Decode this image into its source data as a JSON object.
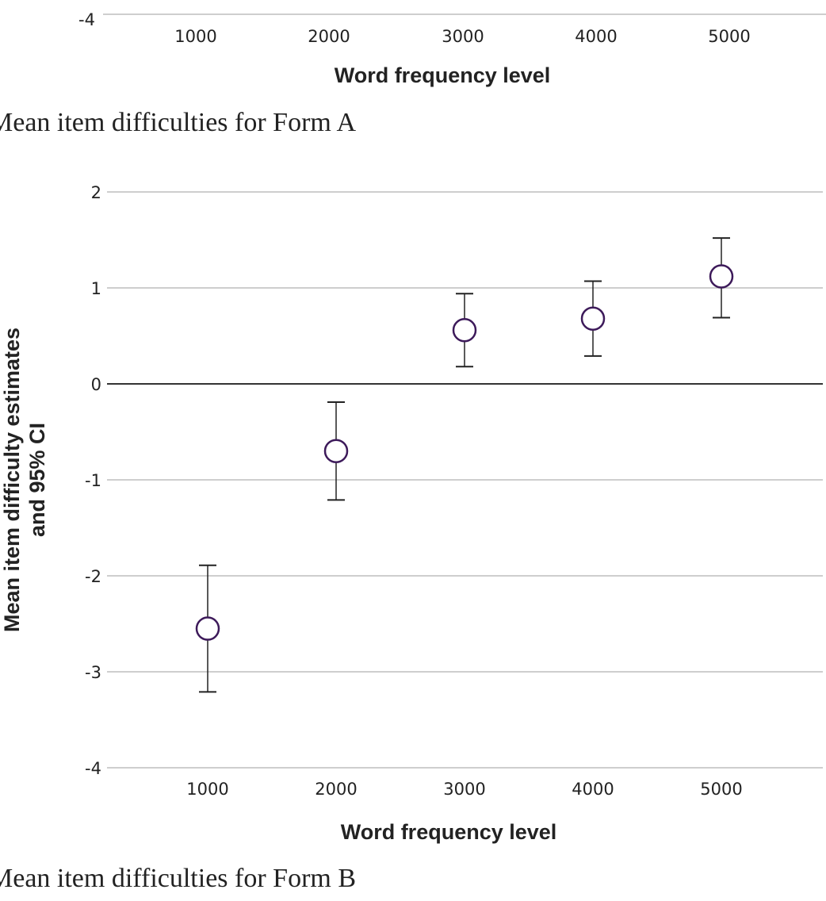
{
  "chart_data": [
    {
      "type": "errorbar",
      "partial": "bottom edge only visible",
      "xlabel": "Word frequency level",
      "categories": [
        "1000",
        "2000",
        "3000",
        "4000",
        "5000"
      ],
      "y_ticks_visible": [
        "-4"
      ],
      "caption": "Mean item difficulties for Form A"
    },
    {
      "type": "errorbar",
      "xlabel": "Word frequency level",
      "ylabel_lines": [
        "Mean item difficulty estimates",
        "and 95% CI"
      ],
      "categories": [
        "1000",
        "2000",
        "3000",
        "4000",
        "5000"
      ],
      "y_ticks": [
        "2",
        "1",
        "0",
        "-1",
        "-2",
        "-3",
        "-4"
      ],
      "ylim": [
        -4,
        2
      ],
      "grid": true,
      "marker": "open circle",
      "marker_color": "#3d1a5a",
      "points": [
        {
          "x": 1000,
          "mean": -2.55,
          "lower": -3.21,
          "upper": -1.89
        },
        {
          "x": 2000,
          "mean": -0.7,
          "lower": -1.21,
          "upper": -0.19
        },
        {
          "x": 3000,
          "mean": 0.56,
          "lower": 0.18,
          "upper": 0.94
        },
        {
          "x": 4000,
          "mean": 0.68,
          "lower": 0.29,
          "upper": 1.07
        },
        {
          "x": 5000,
          "mean": 1.12,
          "lower": 0.69,
          "upper": 1.52
        }
      ],
      "caption": "Mean item difficulties for Form B"
    }
  ]
}
